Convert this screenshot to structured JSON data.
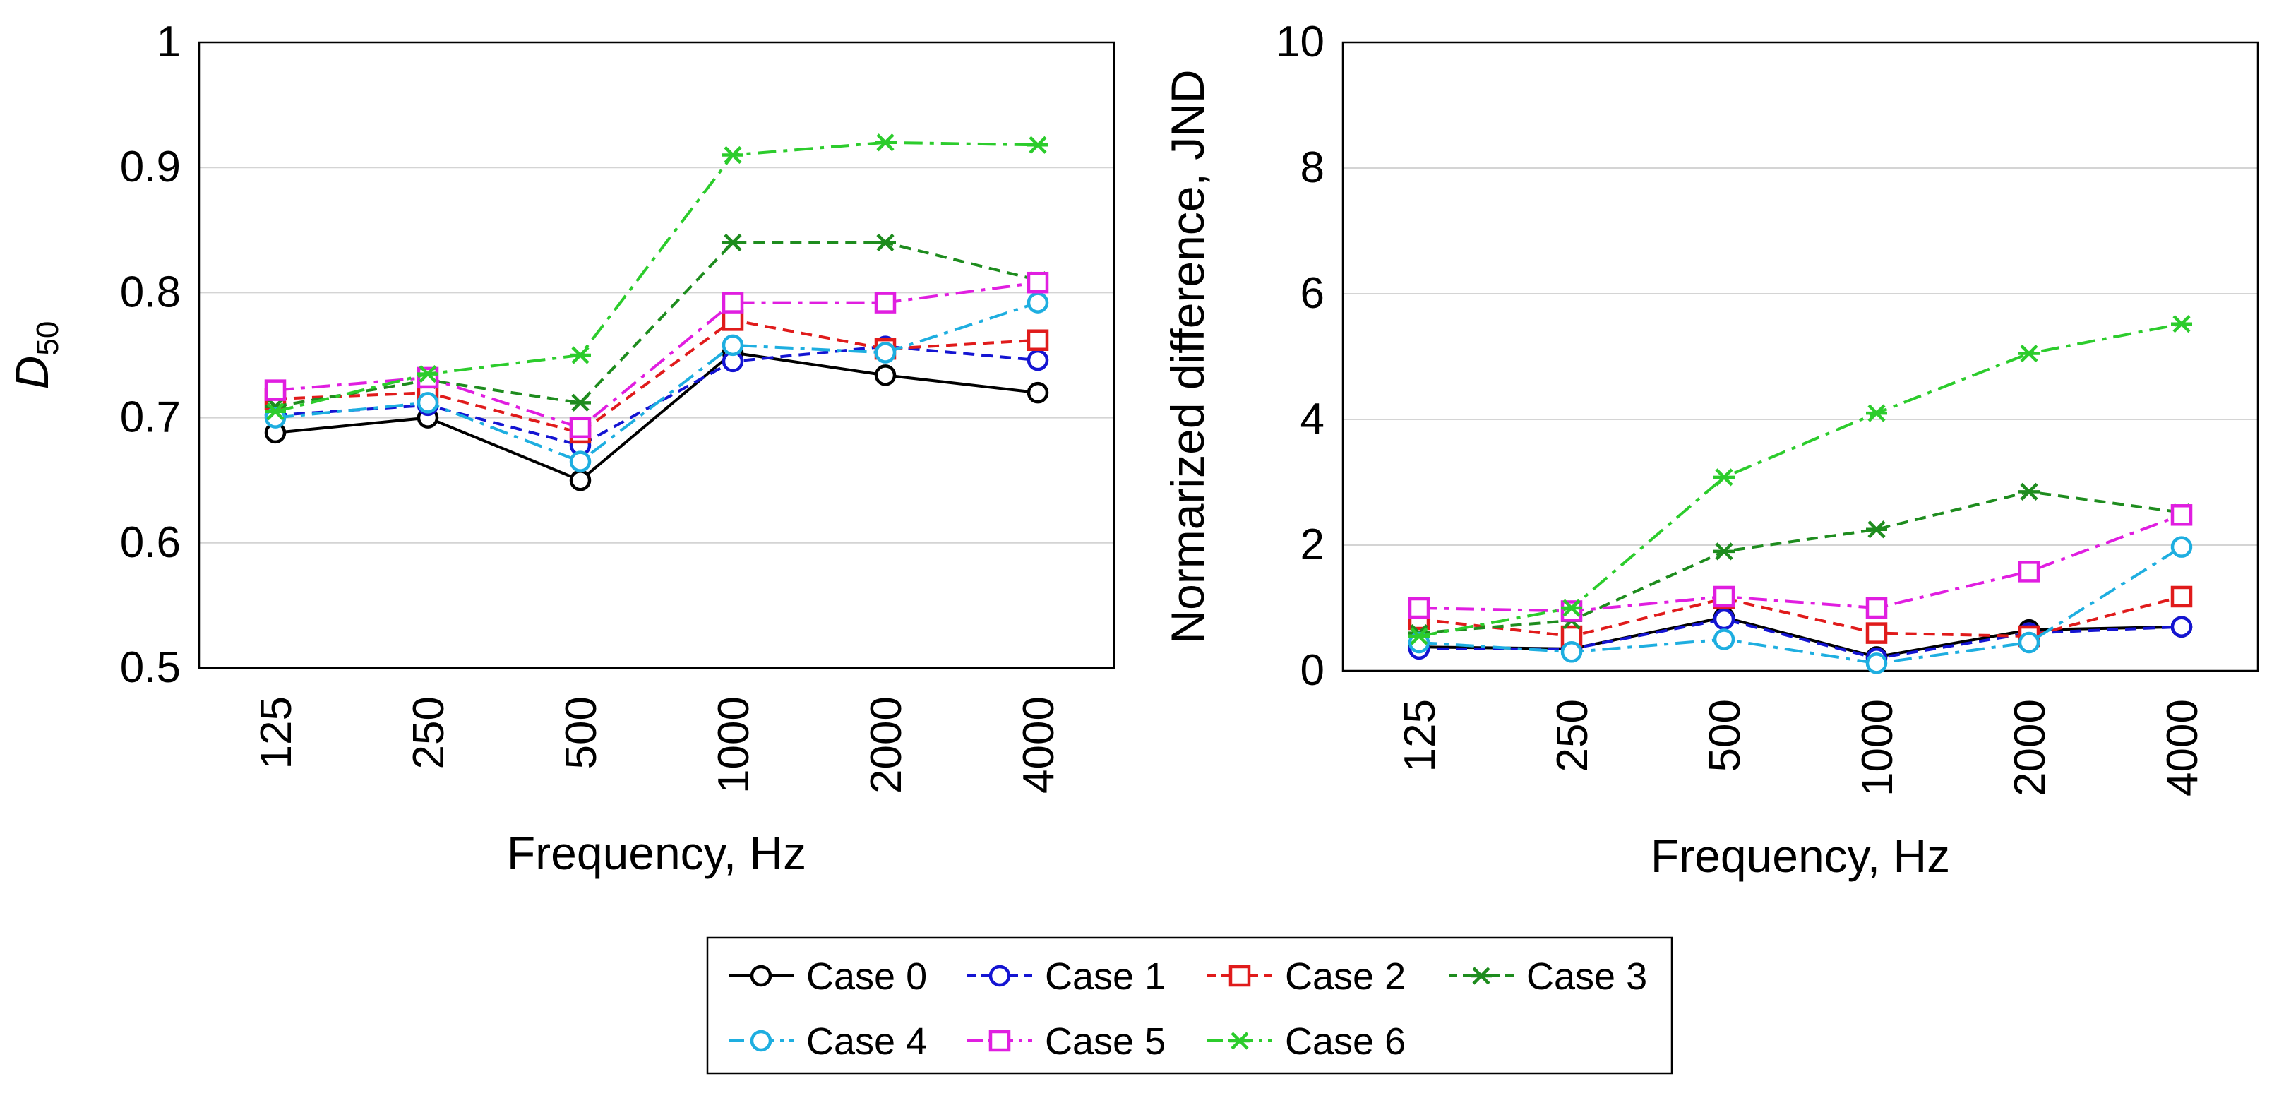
{
  "chart_data": [
    {
      "type": "line",
      "title": "",
      "xlabel": "Frequency, Hz",
      "ylabel_main": "D",
      "ylabel_sub": "50",
      "categories": [
        "125",
        "250",
        "500",
        "1000",
        "2000",
        "4000"
      ],
      "ylim": [
        0.5,
        1.0
      ],
      "yticks": [
        0.5,
        0.6,
        0.7,
        0.8,
        0.9,
        1.0
      ],
      "ytick_labels": [
        "0.5",
        "0.6",
        "0.7",
        "0.8",
        "0.9",
        "1"
      ],
      "grid": true,
      "series": [
        {
          "name": "Case 0",
          "values": [
            0.688,
            0.7,
            0.65,
            0.752,
            0.734,
            0.72
          ]
        },
        {
          "name": "Case 1",
          "values": [
            0.702,
            0.71,
            0.678,
            0.745,
            0.757,
            0.746
          ]
        },
        {
          "name": "Case 2",
          "values": [
            0.715,
            0.72,
            0.688,
            0.778,
            0.755,
            0.762
          ]
        },
        {
          "name": "Case 3",
          "values": [
            0.709,
            0.73,
            0.712,
            0.84,
            0.84,
            0.81
          ]
        },
        {
          "name": "Case 4",
          "values": [
            0.7,
            0.712,
            0.665,
            0.758,
            0.752,
            0.792
          ]
        },
        {
          "name": "Case 5",
          "values": [
            0.722,
            0.732,
            0.692,
            0.792,
            0.792,
            0.808
          ]
        },
        {
          "name": "Case 6",
          "values": [
            0.705,
            0.735,
            0.75,
            0.91,
            0.92,
            0.918
          ]
        }
      ]
    },
    {
      "type": "line",
      "title": "",
      "xlabel": "Frequency, Hz",
      "ylabel": "Normarized difference, JND",
      "categories": [
        "125",
        "250",
        "500",
        "1000",
        "2000",
        "4000"
      ],
      "ylim": [
        0,
        10
      ],
      "yticks": [
        0,
        2,
        4,
        6,
        8,
        10
      ],
      "ytick_labels": [
        "0",
        "2",
        "4",
        "6",
        "8",
        "10"
      ],
      "grid": true,
      "series": [
        {
          "name": "Case 0",
          "values": [
            0.38,
            0.35,
            0.85,
            0.22,
            0.65,
            0.7
          ]
        },
        {
          "name": "Case 1",
          "values": [
            0.35,
            0.35,
            0.82,
            0.2,
            0.6,
            0.7
          ]
        },
        {
          "name": "Case 2",
          "values": [
            0.82,
            0.55,
            1.15,
            0.6,
            0.55,
            1.18
          ]
        },
        {
          "name": "Case 3",
          "values": [
            0.6,
            0.8,
            1.9,
            2.25,
            2.85,
            2.52
          ]
        },
        {
          "name": "Case 4",
          "values": [
            0.45,
            0.3,
            0.5,
            0.12,
            0.45,
            1.97
          ]
        },
        {
          "name": "Case 5",
          "values": [
            1.0,
            0.95,
            1.18,
            1.0,
            1.58,
            2.48
          ]
        },
        {
          "name": "Case 6",
          "values": [
            0.55,
            1.0,
            3.08,
            4.1,
            5.05,
            5.52
          ]
        }
      ]
    }
  ],
  "legend": {
    "placement": "bottom-center",
    "entries": [
      {
        "name": "Case 0",
        "color": "#000000",
        "marker": "circle",
        "dash": "solid"
      },
      {
        "name": "Case 1",
        "color": "#1414d2",
        "marker": "circle",
        "dash": "dash"
      },
      {
        "name": "Case 2",
        "color": "#e01b1b",
        "marker": "square",
        "dash": "dash"
      },
      {
        "name": "Case 3",
        "color": "#1e8c1e",
        "marker": "asterisk",
        "dash": "dash"
      },
      {
        "name": "Case 4",
        "color": "#1eaee0",
        "marker": "circle",
        "dash": "dashdot"
      },
      {
        "name": "Case 5",
        "color": "#e01ee0",
        "marker": "square",
        "dash": "dashdot"
      },
      {
        "name": "Case 6",
        "color": "#2ccc2c",
        "marker": "asterisk",
        "dash": "dashdot"
      }
    ]
  }
}
